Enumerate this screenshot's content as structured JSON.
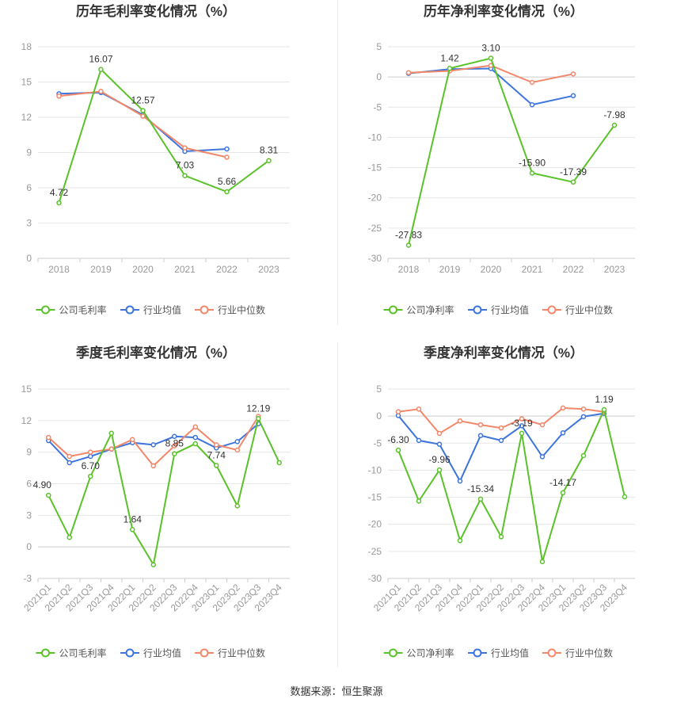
{
  "chart_data": [
    {
      "type": "line",
      "title": "历年毛利率变化情况（%）",
      "categories": [
        "2018",
        "2019",
        "2020",
        "2021",
        "2022",
        "2023"
      ],
      "ylim": [
        0,
        18
      ],
      "yticks": [
        0,
        3,
        6,
        9,
        12,
        15,
        18
      ],
      "grid": true,
      "legend_position": "bottom",
      "series": [
        {
          "name": "公司毛利率",
          "color": "#5ac229",
          "values": [
            4.72,
            16.07,
            12.57,
            7.03,
            5.66,
            8.31
          ],
          "labels": [
            "4.72",
            "16.07",
            "12.57",
            "7.03",
            "5.66",
            "8.31"
          ]
        },
        {
          "name": "行业均值",
          "color": "#3d75dd",
          "values": [
            14.0,
            14.1,
            12.2,
            9.1,
            9.3,
            null
          ]
        },
        {
          "name": "行业中位数",
          "color": "#f2876a",
          "values": [
            13.8,
            14.2,
            12.1,
            9.4,
            8.6,
            null
          ]
        }
      ]
    },
    {
      "type": "line",
      "title": "历年净利率变化情况（%）",
      "categories": [
        "2018",
        "2019",
        "2020",
        "2021",
        "2022",
        "2023"
      ],
      "ylim": [
        -30,
        5
      ],
      "yticks": [
        -30,
        -25,
        -20,
        -15,
        -10,
        -5,
        0,
        5
      ],
      "grid": true,
      "legend_position": "bottom",
      "series": [
        {
          "name": "公司净利率",
          "color": "#5ac229",
          "values": [
            -27.83,
            1.42,
            3.1,
            -15.9,
            -17.39,
            -7.98
          ],
          "labels": [
            "-27.83",
            "1.42",
            "3.10",
            "-15.90",
            "-17.39",
            "-7.98"
          ]
        },
        {
          "name": "行业均值",
          "color": "#3d75dd",
          "values": [
            0.6,
            1.3,
            1.4,
            -4.6,
            -3.1,
            null
          ]
        },
        {
          "name": "行业中位数",
          "color": "#f2876a",
          "values": [
            0.7,
            1.0,
            1.9,
            -0.9,
            0.5,
            null
          ]
        }
      ]
    },
    {
      "type": "line",
      "title": "季度毛利率变化情况（%）",
      "categories": [
        "2021Q1",
        "2021Q2",
        "2021Q3",
        "2021Q4",
        "2022Q1",
        "2022Q2",
        "2022Q3",
        "2022Q4",
        "2023Q1",
        "2023Q2",
        "2023Q3",
        "2023Q4"
      ],
      "ylim": [
        -3,
        15
      ],
      "yticks": [
        -3,
        0,
        3,
        6,
        9,
        12,
        15
      ],
      "grid": true,
      "legend_position": "bottom",
      "series": [
        {
          "name": "公司毛利率",
          "color": "#5ac229",
          "values": [
            4.9,
            0.9,
            6.7,
            10.8,
            1.64,
            -1.7,
            8.85,
            9.8,
            7.74,
            3.9,
            12.19,
            8.0
          ],
          "labels": [
            "4.90",
            null,
            "6.70",
            null,
            "1.64",
            null,
            "8.85",
            null,
            "7.74",
            null,
            "12.19",
            null
          ]
        },
        {
          "name": "行业均值",
          "color": "#3d75dd",
          "values": [
            10.1,
            8.0,
            8.6,
            9.3,
            9.9,
            9.7,
            10.5,
            10.4,
            9.4,
            10.0,
            11.7,
            null
          ]
        },
        {
          "name": "行业中位数",
          "color": "#f2876a",
          "values": [
            10.4,
            8.6,
            9.0,
            9.3,
            10.2,
            7.7,
            9.6,
            11.4,
            9.7,
            9.2,
            12.4,
            null
          ]
        }
      ]
    },
    {
      "type": "line",
      "title": "季度净利率变化情况（%）",
      "categories": [
        "2021Q1",
        "2021Q2",
        "2021Q3",
        "2021Q4",
        "2022Q1",
        "2022Q2",
        "2022Q3",
        "2022Q4",
        "2023Q1",
        "2023Q2",
        "2023Q3",
        "2023Q4"
      ],
      "ylim": [
        -30,
        5
      ],
      "yticks": [
        -30,
        -25,
        -20,
        -15,
        -10,
        -5,
        0,
        5
      ],
      "grid": true,
      "legend_position": "bottom",
      "series": [
        {
          "name": "公司净利率",
          "color": "#5ac229",
          "values": [
            -6.3,
            -15.7,
            -9.96,
            -23.0,
            -15.34,
            -22.3,
            -3.19,
            -26.9,
            -14.17,
            -7.3,
            1.19,
            -14.9
          ],
          "labels": [
            "-6.30",
            null,
            "-9.96",
            null,
            "-15.34",
            null,
            "-3.19",
            null,
            "-14.17",
            null,
            "1.19",
            null
          ]
        },
        {
          "name": "行业均值",
          "color": "#3d75dd",
          "values": [
            0.1,
            -4.5,
            -5.2,
            -12.0,
            -3.6,
            -4.5,
            -1.8,
            -7.5,
            -3.1,
            -0.1,
            0.5,
            null
          ]
        },
        {
          "name": "行业中位数",
          "color": "#f2876a",
          "values": [
            0.8,
            1.3,
            -3.2,
            -0.9,
            -1.6,
            -2.2,
            -0.5,
            -1.6,
            1.5,
            1.3,
            0.8,
            null
          ]
        }
      ]
    }
  ],
  "footer": {
    "source_label": "数据来源：",
    "source_value": "恒生聚源"
  },
  "colors": {
    "grid": "#e6e6e6",
    "axis": "#cccccc",
    "tick_text": "#999999",
    "title": "#333333",
    "label": "#333333"
  }
}
